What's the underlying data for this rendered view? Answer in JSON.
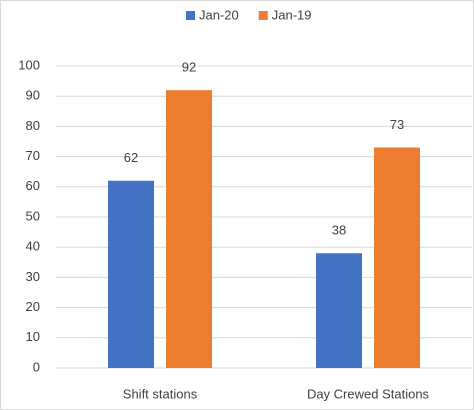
{
  "chart_data": {
    "type": "bar",
    "categories": [
      "Shift stations",
      "Day Crewed Stations"
    ],
    "series": [
      {
        "name": "Jan-20",
        "color": "#4472c4",
        "values": [
          62,
          38
        ]
      },
      {
        "name": "Jan-19",
        "color": "#ed7d31",
        "values": [
          92,
          73
        ]
      }
    ],
    "ylim": [
      0,
      100
    ],
    "yticks": [
      0,
      10,
      20,
      30,
      40,
      50,
      60,
      70,
      80,
      90,
      100
    ],
    "grid": true,
    "legend": "top",
    "data_labels": true
  }
}
